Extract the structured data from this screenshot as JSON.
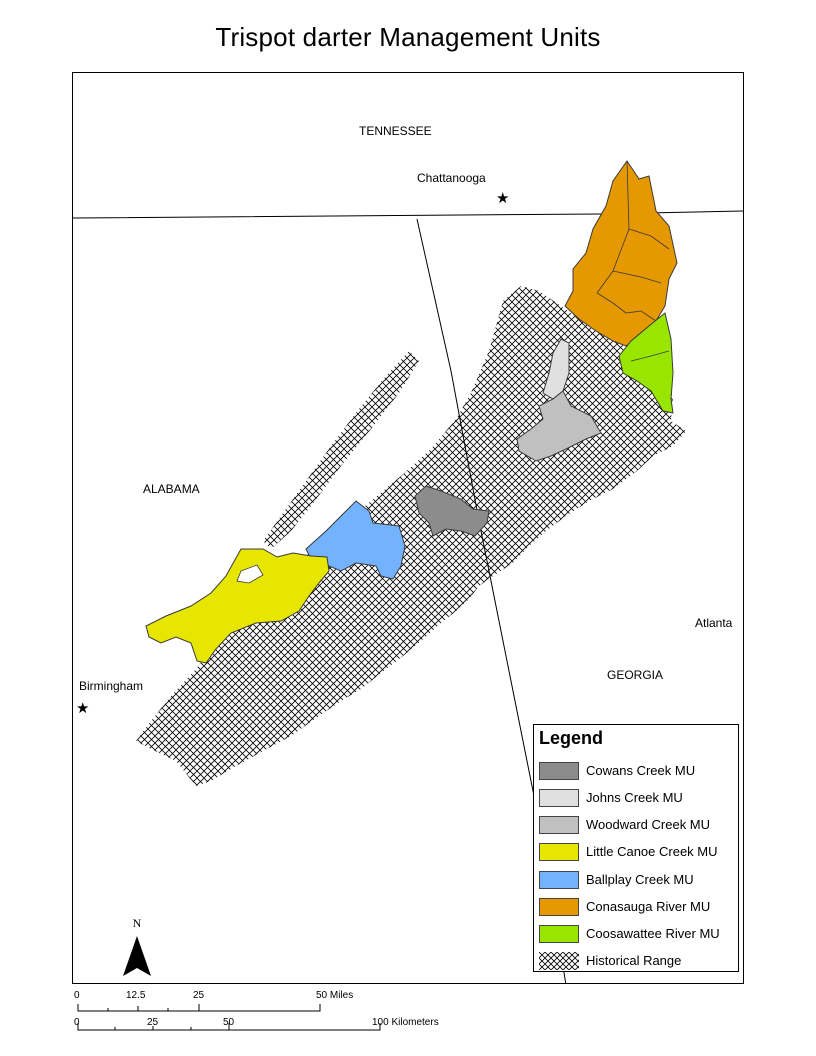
{
  "title": "Trispot darter Management Units",
  "states": {
    "tennessee": "TENNESSEE",
    "alabama": "ALABAMA",
    "georgia": "GEORGIA"
  },
  "cities": {
    "chattanooga": "Chattanooga",
    "birmingham": "Birmingham",
    "atlanta": "Atlanta",
    "star_symbol": "★"
  },
  "legend": {
    "title": "Legend",
    "items": [
      {
        "label": "Cowans Creek MU",
        "color": "#8c8c8c"
      },
      {
        "label": "Johns Creek MU",
        "color": "#e0e0e0"
      },
      {
        "label": "Woodward Creek MU",
        "color": "#c0c0c0"
      },
      {
        "label": "Little Canoe Creek MU",
        "color": "#e6e600"
      },
      {
        "label": "Ballplay Creek MU",
        "color": "#73b2ff"
      },
      {
        "label": "Conasauga River MU",
        "color": "#e69800"
      },
      {
        "label": "Coosawattee River MU",
        "color": "#98e600"
      },
      {
        "label": "Historical Range",
        "color": "hatch"
      }
    ]
  },
  "north_arrow": {
    "label": "N"
  },
  "scale": {
    "miles": [
      "0",
      "12.5",
      "25",
      "50 Miles"
    ],
    "kilometers": [
      "0",
      "25",
      "50",
      "100 Kilometers"
    ]
  }
}
